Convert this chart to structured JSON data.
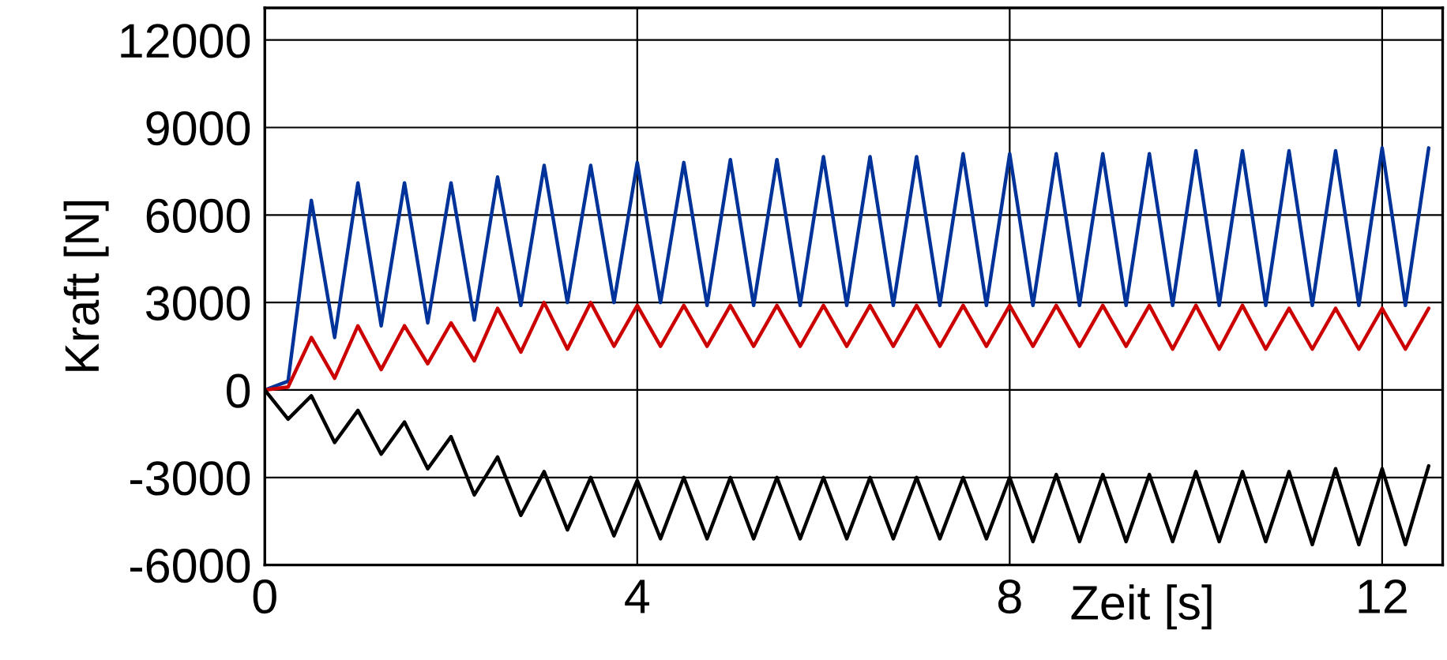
{
  "chart_data": {
    "type": "line",
    "xlabel": "Zeit [s]",
    "ylabel": "Kraft [N]",
    "x": [
      0,
      0.25,
      0.5,
      0.75,
      1,
      1.25,
      1.5,
      1.75,
      2,
      2.25,
      2.5,
      2.75,
      3,
      3.25,
      3.5,
      3.75,
      4,
      4.25,
      4.5,
      4.75,
      5,
      5.25,
      5.5,
      5.75,
      6,
      6.25,
      6.5,
      6.75,
      7,
      7.25,
      7.5,
      7.75,
      8,
      8.25,
      8.5,
      8.75,
      9,
      9.25,
      9.5,
      9.75,
      10,
      10.25,
      10.5,
      10.75,
      11,
      11.25,
      11.5,
      11.75,
      12,
      12.25,
      12.5
    ],
    "series": [
      {
        "color": "#003399",
        "values": [
          0,
          300,
          6500,
          1800,
          7100,
          2200,
          7100,
          2300,
          7100,
          2400,
          7300,
          2900,
          7700,
          3000,
          7700,
          3000,
          7800,
          3000,
          7800,
          2900,
          7900,
          2900,
          7900,
          2900,
          8000,
          2900,
          8000,
          2900,
          8000,
          2900,
          8100,
          2900,
          8100,
          2900,
          8100,
          2900,
          8100,
          2900,
          8100,
          2900,
          8200,
          2900,
          8200,
          2900,
          8200,
          2900,
          8200,
          2900,
          8300,
          2900,
          8300
        ]
      },
      {
        "color": "#cc0000",
        "values": [
          0,
          100,
          1800,
          400,
          2200,
          700,
          2200,
          900,
          2300,
          1000,
          2800,
          1300,
          3000,
          1400,
          3000,
          1500,
          2900,
          1500,
          2900,
          1500,
          2900,
          1500,
          2900,
          1500,
          2900,
          1500,
          2900,
          1500,
          2900,
          1500,
          2900,
          1500,
          2900,
          1500,
          2900,
          1500,
          2900,
          1500,
          2900,
          1400,
          2900,
          1400,
          2900,
          1400,
          2800,
          1400,
          2800,
          1400,
          2800,
          1400,
          2800
        ]
      },
      {
        "color": "#000000",
        "values": [
          0,
          -1000,
          -200,
          -1800,
          -700,
          -2200,
          -1100,
          -2700,
          -1600,
          -3600,
          -2300,
          -4300,
          -2800,
          -4800,
          -3000,
          -5000,
          -3100,
          -5100,
          -3000,
          -5100,
          -3000,
          -5100,
          -3000,
          -5100,
          -3000,
          -5100,
          -3000,
          -5100,
          -3000,
          -5100,
          -3000,
          -5100,
          -3000,
          -5200,
          -2900,
          -5200,
          -2900,
          -5200,
          -2900,
          -5200,
          -2800,
          -5200,
          -2800,
          -5200,
          -2800,
          -5300,
          -2700,
          -5300,
          -2700,
          -5300,
          -2600
        ]
      }
    ],
    "xlim": [
      0,
      12.65
    ],
    "ylim": [
      -6000,
      13100
    ],
    "xticks": [
      0,
      4,
      8,
      12
    ],
    "yticks": [
      -6000,
      -3000,
      0,
      3000,
      6000,
      9000,
      12000
    ],
    "grid": true,
    "marker": "none",
    "line_style": "solid"
  }
}
